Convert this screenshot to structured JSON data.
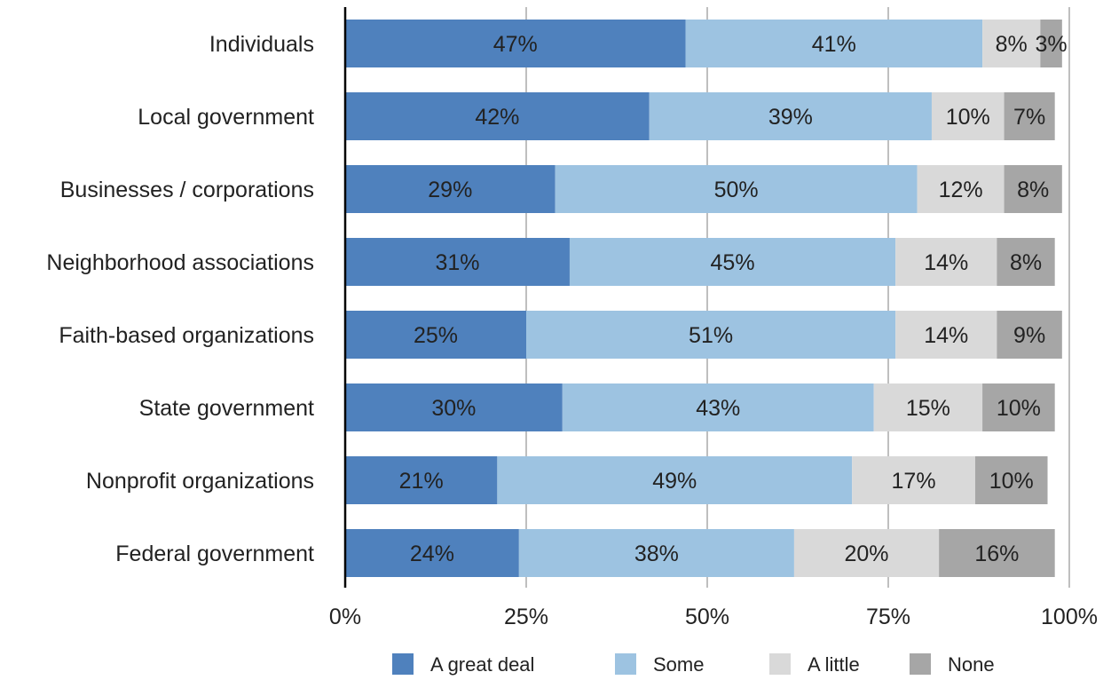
{
  "chart_data": {
    "type": "bar",
    "orientation": "horizontal",
    "stacked": true,
    "categories": [
      "Individuals",
      "Local government",
      "Businesses / corporations",
      "Neighborhood associations",
      "Faith-based organizations",
      "State government",
      "Nonprofit organizations",
      "Federal government"
    ],
    "series": [
      {
        "name": "A great deal",
        "color": "#4f81bd",
        "values": [
          47,
          42,
          29,
          31,
          25,
          30,
          21,
          24
        ]
      },
      {
        "name": "Some",
        "color": "#9dc3e1",
        "values": [
          41,
          39,
          50,
          45,
          51,
          43,
          49,
          38
        ]
      },
      {
        "name": "A little",
        "color": "#d9d9d9",
        "values": [
          8,
          10,
          12,
          14,
          14,
          15,
          17,
          20
        ]
      },
      {
        "name": "None",
        "color": "#a6a6a6",
        "values": [
          3,
          7,
          8,
          8,
          9,
          10,
          10,
          16
        ]
      }
    ],
    "value_suffix": "%",
    "xlim": [
      0,
      100
    ],
    "xticks": [
      0,
      25,
      50,
      75,
      100
    ],
    "xtick_labels": [
      "0%",
      "25%",
      "50%",
      "75%",
      "100%"
    ],
    "grid": "vertical",
    "legend_position": "bottom"
  }
}
